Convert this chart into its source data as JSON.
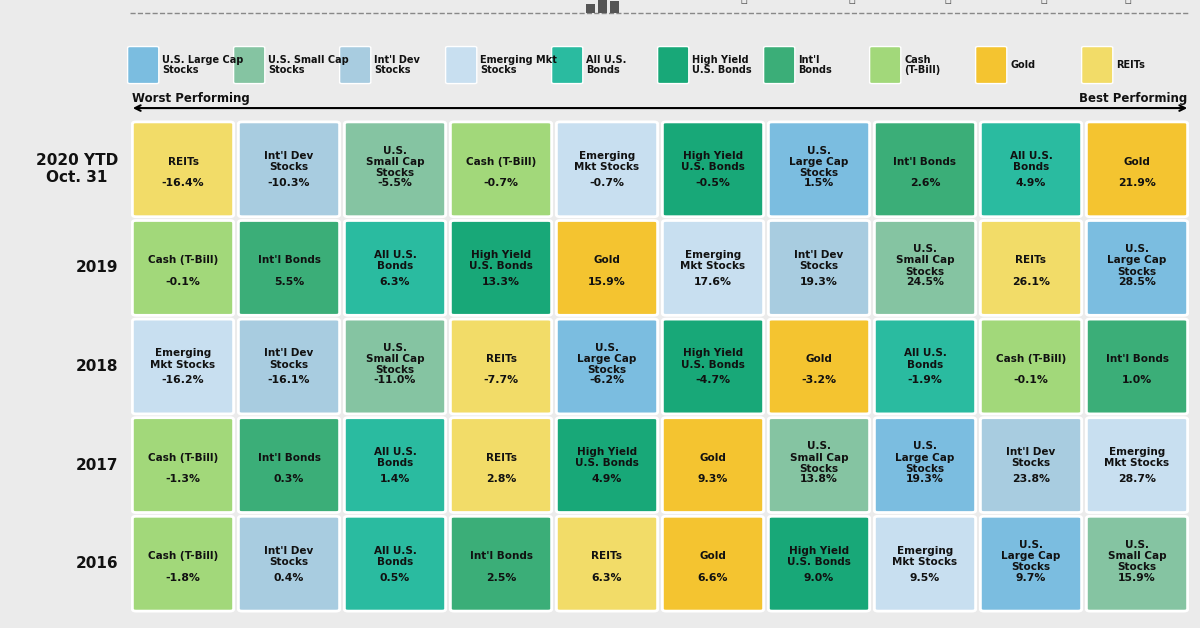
{
  "rows": [
    {
      "year": "2020 YTD\nOct. 31",
      "cells": [
        {
          "asset": "REITs",
          "value": "-16.4%"
        },
        {
          "asset": "Int'l Dev Stocks",
          "value": "-10.3%"
        },
        {
          "asset": "U.S. Small Cap Stocks",
          "value": "-5.5%"
        },
        {
          "asset": "Cash (T-Bill)",
          "value": "-0.7%"
        },
        {
          "asset": "Emerging Mkt Stocks",
          "value": "-0.7%"
        },
        {
          "asset": "High Yield U.S. Bonds",
          "value": "-0.5%"
        },
        {
          "asset": "U.S. Large Cap Stocks",
          "value": "1.5%"
        },
        {
          "asset": "Int'l Bonds",
          "value": "2.6%"
        },
        {
          "asset": "All U.S. Bonds",
          "value": "4.9%"
        },
        {
          "asset": "Gold",
          "value": "21.9%"
        }
      ]
    },
    {
      "year": "2019",
      "cells": [
        {
          "asset": "Cash (T-Bill)",
          "value": "-0.1%"
        },
        {
          "asset": "Int'l Bonds",
          "value": "5.5%"
        },
        {
          "asset": "All U.S. Bonds",
          "value": "6.3%"
        },
        {
          "asset": "High Yield U.S. Bonds",
          "value": "13.3%"
        },
        {
          "asset": "Gold",
          "value": "15.9%"
        },
        {
          "asset": "Emerging Mkt Stocks",
          "value": "17.6%"
        },
        {
          "asset": "Int'l Dev Stocks",
          "value": "19.3%"
        },
        {
          "asset": "U.S. Small Cap Stocks",
          "value": "24.5%"
        },
        {
          "asset": "REITs",
          "value": "26.1%"
        },
        {
          "asset": "U.S. Large Cap Stocks",
          "value": "28.5%"
        }
      ]
    },
    {
      "year": "2018",
      "cells": [
        {
          "asset": "Emerging Mkt Stocks",
          "value": "-16.2%"
        },
        {
          "asset": "Int'l Dev Stocks",
          "value": "-16.1%"
        },
        {
          "asset": "U.S. Small Cap Stocks",
          "value": "-11.0%"
        },
        {
          "asset": "REITs",
          "value": "-7.7%"
        },
        {
          "asset": "U.S. Large Cap Stocks",
          "value": "-6.2%"
        },
        {
          "asset": "High Yield U.S. Bonds",
          "value": "-4.7%"
        },
        {
          "asset": "Gold",
          "value": "-3.2%"
        },
        {
          "asset": "All U.S. Bonds",
          "value": "-1.9%"
        },
        {
          "asset": "Cash (T-Bill)",
          "value": "-0.1%"
        },
        {
          "asset": "Int'l Bonds",
          "value": "1.0%"
        }
      ]
    },
    {
      "year": "2017",
      "cells": [
        {
          "asset": "Cash (T-Bill)",
          "value": "-1.3%"
        },
        {
          "asset": "Int'l Bonds",
          "value": "0.3%"
        },
        {
          "asset": "All U.S. Bonds",
          "value": "1.4%"
        },
        {
          "asset": "REITs",
          "value": "2.8%"
        },
        {
          "asset": "High Yield U.S. Bonds",
          "value": "4.9%"
        },
        {
          "asset": "Gold",
          "value": "9.3%"
        },
        {
          "asset": "U.S. Small Cap Stocks",
          "value": "13.8%"
        },
        {
          "asset": "U.S. Large Cap Stocks",
          "value": "19.3%"
        },
        {
          "asset": "Int'l Dev Stocks",
          "value": "23.8%"
        },
        {
          "asset": "Emerging Mkt Stocks",
          "value": "28.7%"
        }
      ]
    },
    {
      "year": "2016",
      "cells": [
        {
          "asset": "Cash (T-Bill)",
          "value": "-1.8%"
        },
        {
          "asset": "Int'l Dev Stocks",
          "value": "0.4%"
        },
        {
          "asset": "All U.S. Bonds",
          "value": "0.5%"
        },
        {
          "asset": "Int'l Bonds",
          "value": "2.5%"
        },
        {
          "asset": "REITs",
          "value": "6.3%"
        },
        {
          "asset": "Gold",
          "value": "6.6%"
        },
        {
          "asset": "High Yield U.S. Bonds",
          "value": "9.0%"
        },
        {
          "asset": "Emerging Mkt Stocks",
          "value": "9.5%"
        },
        {
          "asset": "U.S. Large Cap Stocks",
          "value": "9.7%"
        },
        {
          "asset": "U.S. Small Cap Stocks",
          "value": "15.9%"
        }
      ]
    }
  ],
  "cell_colors": {
    "U.S. Large Cap Stocks": "#7BBDE0",
    "U.S. Small Cap Stocks": "#85C4A2",
    "Int'l Dev Stocks": "#A8CCE0",
    "Emerging Mkt Stocks": "#C8DFF0",
    "All U.S. Bonds": "#2ABBA0",
    "High Yield U.S. Bonds": "#18A878",
    "Int'l Bonds": "#3BAE78",
    "Cash (T-Bill)": "#A2D87A",
    "Gold": "#F4C430",
    "REITs": "#F2DC68"
  },
  "legend_items": [
    {
      "label": "U.S. Large Cap\nStocks",
      "color": "#7BBDE0"
    },
    {
      "label": "U.S. Small Cap\nStocks",
      "color": "#85C4A2"
    },
    {
      "label": "Int'l Dev\nStocks",
      "color": "#A8CCE0"
    },
    {
      "label": "Emerging Mkt\nStocks",
      "color": "#C8DFF0"
    },
    {
      "label": "All U.S.\nBonds",
      "color": "#2ABBA0"
    },
    {
      "label": "High Yield\nU.S. Bonds",
      "color": "#18A878"
    },
    {
      "label": "Int'l\nBonds",
      "color": "#3BAE78"
    },
    {
      "label": "Cash\n(T-Bill)",
      "color": "#A2D87A"
    },
    {
      "label": "Gold",
      "color": "#F4C430"
    },
    {
      "label": "REITs",
      "color": "#F2DC68"
    }
  ],
  "asset_display": {
    "U.S. Large Cap Stocks": "U.S.\nLarge Cap\nStocks",
    "U.S. Small Cap Stocks": "U.S.\nSmall Cap\nStocks",
    "Int'l Dev Stocks": "Int'l Dev\nStocks",
    "Emerging Mkt Stocks": "Emerging\nMkt Stocks",
    "All U.S. Bonds": "All U.S.\nBonds",
    "High Yield U.S. Bonds": "High Yield\nU.S. Bonds",
    "Int'l Bonds": "Int'l Bonds",
    "Cash (T-Bill)": "Cash (T-Bill)",
    "Gold": "Gold",
    "REITs": "REITs"
  },
  "bg_color": "#EBEBEB",
  "worst_label": "Worst Performing",
  "best_label": "Best Performing"
}
